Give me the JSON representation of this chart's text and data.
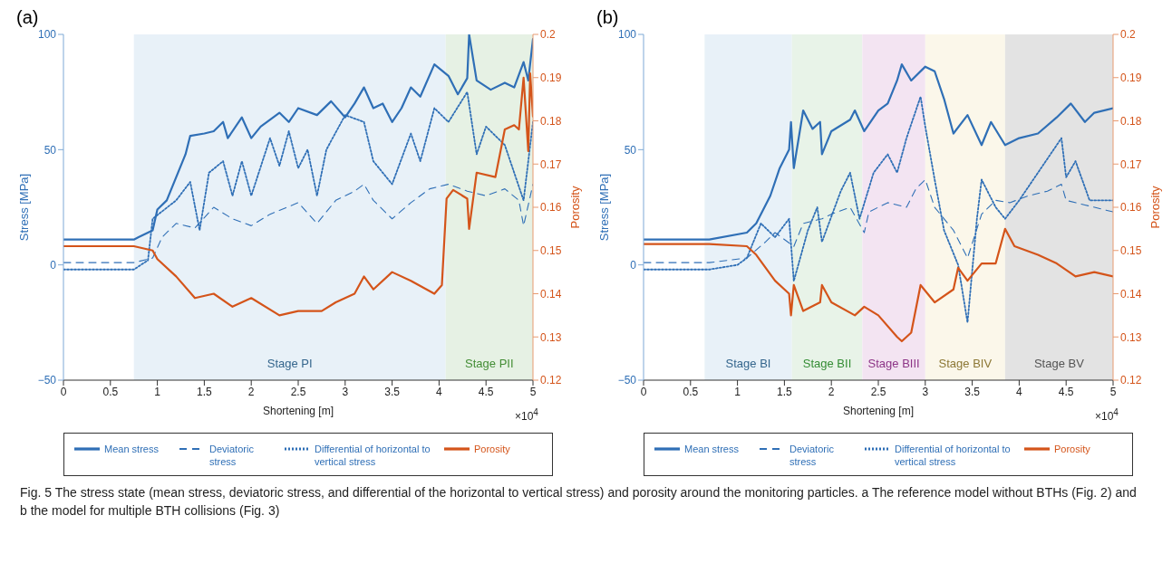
{
  "chart_data": [
    {
      "type": "line",
      "title": "(a)",
      "xlabel": "Shortening [m]",
      "ylabel": "Stress [MPa]",
      "y2label": "Porosity",
      "annotations": [
        "×10$^{4}$"
      ],
      "xlim": [
        0,
        5
      ],
      "xticks": [
        0,
        0.5,
        1,
        1.5,
        2,
        2.5,
        3,
        3.5,
        4,
        4.5,
        5
      ],
      "ylim": [
        -50,
        100
      ],
      "yticks": [
        {
          "value": -50,
          "label": "−50"
        },
        0,
        50,
        100
      ],
      "y2lim": [
        0.12,
        0.2
      ],
      "y2ticks": [
        0.12,
        0.13,
        0.14,
        0.15,
        0.16,
        0.17,
        0.18,
        0.19,
        0.2
      ],
      "legend": "bottom",
      "bands": [
        {
          "axis": "x",
          "from": 0.75,
          "to": 4.07,
          "label": "Stage PI",
          "color": "#e8f1f8"
        },
        {
          "axis": "x",
          "from": 4.07,
          "to": 5,
          "label": "Stage PII",
          "color": "#e6f1e4"
        }
      ],
      "series": [
        {
          "name": "Mean stress",
          "color": "#2f6fb6",
          "line_style": "solid",
          "x": [
            0,
            0.75,
            0.8,
            0.95,
            1.0,
            1.1,
            1.2,
            1.3,
            1.35,
            1.5,
            1.6,
            1.7,
            1.75,
            1.9,
            2.0,
            2.1,
            2.3,
            2.4,
            2.5,
            2.7,
            2.85,
            3.0,
            3.1,
            3.2,
            3.3,
            3.4,
            3.5,
            3.6,
            3.7,
            3.8,
            3.95,
            4.1,
            4.2,
            4.3,
            4.32,
            4.4,
            4.55,
            4.7,
            4.8,
            4.9,
            4.95,
            5.0
          ],
          "values": [
            11,
            11,
            12,
            15,
            24,
            28,
            38,
            48,
            56,
            57,
            58,
            62,
            55,
            64,
            55,
            60,
            66,
            62,
            68,
            65,
            71,
            64,
            70,
            77,
            68,
            70,
            62,
            68,
            77,
            73,
            87,
            82,
            74,
            81,
            100,
            80,
            76,
            79,
            77,
            88,
            80,
            98
          ]
        },
        {
          "name": "Deviatoric stress",
          "color": "#2f6fb6",
          "line_style": "dashed",
          "x": [
            0,
            0.75,
            0.95,
            1.05,
            1.2,
            1.4,
            1.6,
            1.8,
            2.0,
            2.2,
            2.5,
            2.7,
            2.9,
            3.1,
            3.2,
            3.3,
            3.5,
            3.7,
            3.9,
            4.1,
            4.3,
            4.5,
            4.7,
            4.85,
            4.9,
            5.0
          ],
          "values": [
            1,
            1,
            3,
            12,
            18,
            16,
            25,
            20,
            17,
            22,
            27,
            18,
            28,
            32,
            35,
            28,
            20,
            27,
            33,
            35,
            32,
            30,
            33,
            28,
            17,
            35
          ]
        },
        {
          "name": "Differential of horizontal to vertical stress",
          "color": "#2f6fb6",
          "line_style": "dotted",
          "x": [
            0,
            0.75,
            0.9,
            0.95,
            1.2,
            1.35,
            1.45,
            1.55,
            1.7,
            1.8,
            1.9,
            2.0,
            2.2,
            2.3,
            2.4,
            2.5,
            2.6,
            2.7,
            2.8,
            3.0,
            3.2,
            3.3,
            3.5,
            3.7,
            3.8,
            3.95,
            4.1,
            4.3,
            4.4,
            4.5,
            4.7,
            4.9,
            5.0
          ],
          "values": [
            -2,
            -2,
            2,
            20,
            28,
            36,
            15,
            40,
            45,
            30,
            45,
            30,
            55,
            43,
            58,
            42,
            50,
            30,
            50,
            65,
            62,
            45,
            35,
            57,
            45,
            68,
            62,
            75,
            48,
            60,
            52,
            28,
            62
          ]
        },
        {
          "name": "Porosity",
          "color": "#d4541a",
          "line_style": "solid",
          "axis": "y2",
          "x": [
            0,
            0.75,
            0.95,
            1.0,
            1.2,
            1.4,
            1.6,
            1.8,
            2.0,
            2.3,
            2.5,
            2.75,
            2.9,
            3.1,
            3.2,
            3.3,
            3.5,
            3.7,
            3.95,
            4.03,
            4.08,
            4.15,
            4.3,
            4.32,
            4.4,
            4.6,
            4.7,
            4.8,
            4.85,
            4.9,
            4.95,
            4.97,
            5.0
          ],
          "values": [
            0.151,
            0.151,
            0.15,
            0.148,
            0.144,
            0.139,
            0.14,
            0.137,
            0.139,
            0.135,
            0.136,
            0.136,
            0.138,
            0.14,
            0.144,
            0.141,
            0.145,
            0.143,
            0.14,
            0.142,
            0.162,
            0.164,
            0.162,
            0.155,
            0.168,
            0.167,
            0.178,
            0.179,
            0.178,
            0.19,
            0.173,
            0.191,
            0.181
          ]
        }
      ]
    },
    {
      "type": "line",
      "title": "(b)",
      "xlabel": "Shortening [m]",
      "ylabel": "Stress [MPa]",
      "y2label": "Porosity",
      "annotations": [
        "×10$^{4}$",
        "Fig. 5  The stress state (mean stress, deviatoric stress, and differential of the horizontal to vertical stress) and porosity around the monitoring particles. a The reference model without BTHs (Fig. 2) and b the model for multiple BTH collisions (Fig. 3)"
      ],
      "xlim": [
        0,
        5
      ],
      "xticks": [
        0,
        0.5,
        1,
        1.5,
        2,
        2.5,
        3,
        3.5,
        4,
        4.5,
        5
      ],
      "ylim": [
        -50,
        100
      ],
      "yticks": [
        {
          "value": -50,
          "label": "−50"
        },
        0,
        50,
        100
      ],
      "y2lim": [
        0.12,
        0.2
      ],
      "y2ticks": [
        0.12,
        0.13,
        0.14,
        0.15,
        0.16,
        0.17,
        0.18,
        0.19,
        0.2
      ],
      "legend": "bottom",
      "bands": [
        {
          "axis": "x",
          "from": 0.65,
          "to": 1.58,
          "label": "Stage BI",
          "color": "#e8f1f8"
        },
        {
          "axis": "x",
          "from": 1.58,
          "to": 2.33,
          "label": "Stage BII",
          "color": "#e8f3e8"
        },
        {
          "axis": "x",
          "from": 2.33,
          "to": 3.0,
          "label": "Stage BIII",
          "color": "#f3e4f2"
        },
        {
          "axis": "x",
          "from": 3.0,
          "to": 3.85,
          "label": "Stage BIV",
          "color": "#fbf7ea"
        },
        {
          "axis": "x",
          "from": 3.85,
          "to": 5,
          "label": "Stage BV",
          "color": "#e3e3e3"
        }
      ],
      "series": [
        {
          "name": "Mean stress",
          "color": "#2f6fb6",
          "line_style": "solid",
          "x": [
            0,
            0.7,
            1.1,
            1.2,
            1.35,
            1.45,
            1.55,
            1.57,
            1.6,
            1.7,
            1.8,
            1.88,
            1.9,
            2.0,
            2.2,
            2.25,
            2.35,
            2.5,
            2.6,
            2.7,
            2.75,
            2.85,
            3.0,
            3.1,
            3.2,
            3.3,
            3.45,
            3.6,
            3.7,
            3.85,
            4.0,
            4.2,
            4.4,
            4.55,
            4.7,
            4.8,
            5.0
          ],
          "values": [
            11,
            11,
            14,
            18,
            30,
            42,
            50,
            62,
            42,
            67,
            59,
            62,
            48,
            58,
            63,
            67,
            58,
            67,
            70,
            80,
            87,
            80,
            86,
            84,
            72,
            57,
            65,
            52,
            62,
            52,
            55,
            57,
            64,
            70,
            62,
            66,
            68
          ]
        },
        {
          "name": "Deviatoric stress",
          "color": "#2f6fb6",
          "line_style": "dashed",
          "x": [
            0,
            0.7,
            1.1,
            1.3,
            1.4,
            1.6,
            1.7,
            1.9,
            2.0,
            2.2,
            2.35,
            2.4,
            2.6,
            2.8,
            2.9,
            3.0,
            3.1,
            3.3,
            3.45,
            3.6,
            3.75,
            3.9,
            4.1,
            4.3,
            4.45,
            4.5,
            4.7,
            5.0
          ],
          "values": [
            1,
            1,
            3,
            10,
            14,
            8,
            18,
            20,
            22,
            25,
            14,
            23,
            27,
            25,
            33,
            37,
            25,
            15,
            3,
            22,
            28,
            27,
            30,
            32,
            35,
            28,
            26,
            23
          ]
        },
        {
          "name": "Differential of horizontal to vertical stress",
          "color": "#2f6fb6",
          "line_style": "dotted",
          "x": [
            0,
            0.7,
            1.0,
            1.1,
            1.25,
            1.4,
            1.55,
            1.6,
            1.75,
            1.85,
            1.9,
            2.1,
            2.2,
            2.3,
            2.45,
            2.6,
            2.7,
            2.8,
            2.95,
            3.0,
            3.1,
            3.2,
            3.35,
            3.45,
            3.55,
            3.6,
            3.75,
            3.85,
            4.0,
            4.2,
            4.45,
            4.5,
            4.6,
            4.75,
            5.0
          ],
          "values": [
            -2,
            -2,
            0,
            3,
            18,
            12,
            20,
            -7,
            15,
            25,
            10,
            32,
            40,
            20,
            40,
            48,
            40,
            55,
            73,
            60,
            37,
            15,
            0,
            -25,
            20,
            37,
            25,
            20,
            28,
            40,
            55,
            38,
            45,
            28,
            28
          ]
        },
        {
          "name": "Porosity",
          "color": "#d4541a",
          "line_style": "solid",
          "axis": "y2",
          "x": [
            0,
            0.7,
            1.1,
            1.2,
            1.4,
            1.55,
            1.57,
            1.6,
            1.7,
            1.88,
            1.9,
            2.0,
            2.25,
            2.35,
            2.5,
            2.7,
            2.75,
            2.85,
            2.95,
            3.1,
            3.3,
            3.35,
            3.45,
            3.6,
            3.75,
            3.85,
            3.95,
            4.2,
            4.4,
            4.6,
            4.8,
            5.0
          ],
          "values": [
            0.1515,
            0.1515,
            0.151,
            0.149,
            0.143,
            0.14,
            0.135,
            0.142,
            0.136,
            0.138,
            0.142,
            0.138,
            0.135,
            0.137,
            0.135,
            0.13,
            0.129,
            0.131,
            0.142,
            0.138,
            0.141,
            0.146,
            0.143,
            0.147,
            0.147,
            0.155,
            0.151,
            0.149,
            0.147,
            0.144,
            0.145,
            0.144
          ]
        }
      ]
    }
  ]
}
